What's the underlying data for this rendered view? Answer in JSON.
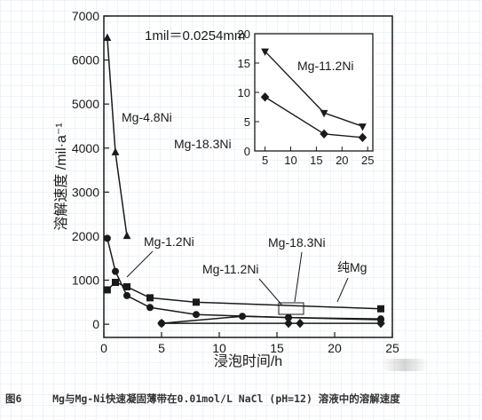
{
  "chart_data": [
    {
      "type": "line",
      "xlabel": "浸泡时间/h",
      "ylabel": "溶解速度 /mil·a⁻¹",
      "xlim": [
        0,
        25
      ],
      "ylim": [
        -300,
        7000
      ],
      "xticks": [
        0,
        5,
        10,
        15,
        20,
        25
      ],
      "yticks": [
        0,
        1000,
        2000,
        3000,
        4000,
        5000,
        6000,
        7000
      ],
      "annotation": "1mil＝0.0254mm",
      "series": [
        {
          "name": "Mg-4.8Ni",
          "marker": "triangle-up",
          "x": [
            0.3,
            1,
            2
          ],
          "y": [
            6500,
            3900,
            2000
          ]
        },
        {
          "name": "Mg-1.2Ni",
          "marker": "square",
          "x": [
            0.3,
            1,
            2,
            4,
            8,
            24
          ],
          "y": [
            780,
            950,
            850,
            600,
            500,
            350
          ]
        },
        {
          "name": "纯Mg",
          "marker": "circle",
          "x": [
            0.3,
            1,
            2,
            4,
            8,
            16,
            24
          ],
          "y": [
            1950,
            1200,
            650,
            380,
            220,
            150,
            100
          ]
        },
        {
          "name": "Mg-11.2Ni",
          "marker": "circle",
          "x": [
            5,
            12,
            16,
            24
          ],
          "y": [
            20,
            180,
            150,
            120
          ]
        },
        {
          "name": "Mg-18.3Ni",
          "marker": "diamond",
          "x": [
            5,
            16,
            17,
            24
          ],
          "y": [
            20,
            20,
            20,
            20
          ]
        }
      ],
      "series_labels": [
        "Mg-4.8Ni",
        "Mg-1.2Ni",
        "Mg-11.2Ni",
        "Mg-18.3Ni",
        "纯Mg"
      ]
    },
    {
      "type": "line",
      "inset": true,
      "xlim": [
        3,
        26
      ],
      "ylim": [
        0,
        20
      ],
      "xticks": [
        5,
        10,
        15,
        20,
        25
      ],
      "yticks": [
        0,
        5,
        10,
        15,
        20
      ],
      "series": [
        {
          "name": "Mg-11.2Ni",
          "marker": "triangle-down",
          "x": [
            5,
            16.5,
            24
          ],
          "y": [
            17,
            6.5,
            4.2
          ]
        },
        {
          "name": "Mg-18.3Ni",
          "marker": "diamond",
          "x": [
            5,
            16.5,
            24
          ],
          "y": [
            9.2,
            2.9,
            2.3
          ]
        }
      ],
      "series_labels": [
        "Mg-11.2Ni",
        "Mg-18.3Ni"
      ]
    }
  ],
  "caption": {
    "figure_number": "图6",
    "text": "Mg与Mg-Ni快速凝固薄带在0.01mol/L NaCl (pH=12) 溶液中的溶解速度"
  },
  "colors": {
    "ink": "#1a1a1a"
  }
}
